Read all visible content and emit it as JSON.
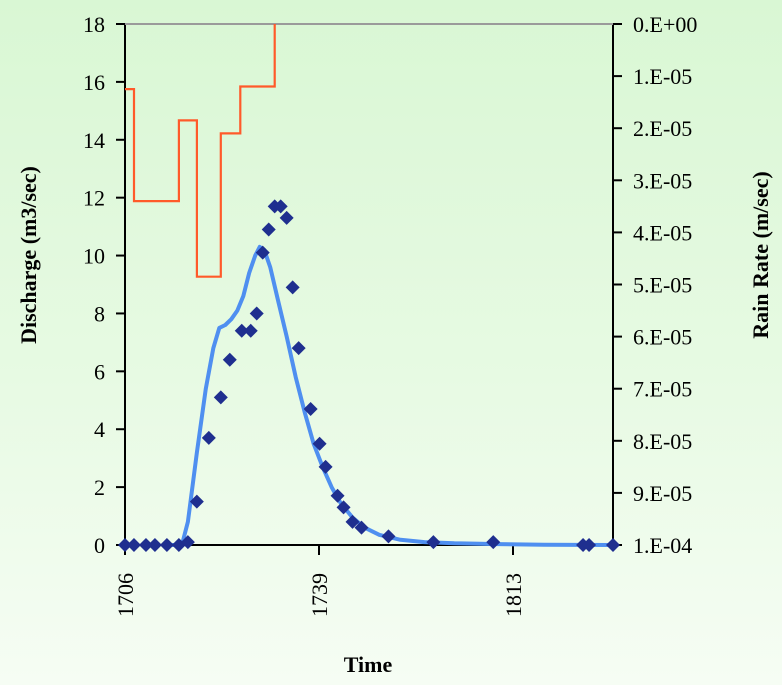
{
  "chart_data": {
    "type": "line",
    "title": "",
    "xlabel": "Time",
    "ylabel": "Discharge (m3/sec)",
    "y2label": "Rain Rate (m/sec)",
    "x_tick_labels": [
      "1706",
      "1739",
      "1813"
    ],
    "ylim": [
      0,
      18
    ],
    "y_ticks": [
      0,
      2,
      4,
      6,
      8,
      10,
      12,
      14,
      16,
      18
    ],
    "y2lim_inverted": [
      0.0,
      0.0001
    ],
    "y2_tick_labels": [
      "0.E+00",
      "1.E-05",
      "2.E-05",
      "3.E-05",
      "4.E-05",
      "5.E-05",
      "6.E-05",
      "7.E-05",
      "8.E-05",
      "9.E-05",
      "1.E-04"
    ],
    "grid": false,
    "series": [
      {
        "role": "observed_discharge",
        "style": "markers",
        "color": "#1f2f8f",
        "points": [
          [
            0,
            0
          ],
          [
            0.3,
            0
          ],
          [
            0.7,
            0
          ],
          [
            1.0,
            0
          ],
          [
            1.4,
            0
          ],
          [
            1.8,
            0
          ],
          [
            2.1,
            0.1
          ],
          [
            2.4,
            1.5
          ],
          [
            2.8,
            3.7
          ],
          [
            3.2,
            5.1
          ],
          [
            3.5,
            6.4
          ],
          [
            3.9,
            7.4
          ],
          [
            4.2,
            7.4
          ],
          [
            4.4,
            8.0
          ],
          [
            4.6,
            10.1
          ],
          [
            4.8,
            10.9
          ],
          [
            5.0,
            11.7
          ],
          [
            5.2,
            11.7
          ],
          [
            5.4,
            11.3
          ],
          [
            5.6,
            8.9
          ],
          [
            5.8,
            6.8
          ],
          [
            6.2,
            4.7
          ],
          [
            6.5,
            3.5
          ],
          [
            6.7,
            2.7
          ],
          [
            7.1,
            1.7
          ],
          [
            7.3,
            1.3
          ],
          [
            7.6,
            0.8
          ],
          [
            7.9,
            0.6
          ],
          [
            8.8,
            0.3
          ],
          [
            10.3,
            0.1
          ],
          [
            12.3,
            0.1
          ],
          [
            15.3,
            0
          ],
          [
            15.5,
            0
          ],
          [
            16.3,
            0
          ]
        ]
      },
      {
        "role": "simulated_discharge",
        "style": "line",
        "color": "#4f8ff0",
        "points": [
          [
            1.5,
            0
          ],
          [
            1.9,
            0
          ],
          [
            2.1,
            0.8
          ],
          [
            2.4,
            3.2
          ],
          [
            2.7,
            5.4
          ],
          [
            2.95,
            6.8
          ],
          [
            3.15,
            7.5
          ],
          [
            3.35,
            7.6
          ],
          [
            3.55,
            7.8
          ],
          [
            3.75,
            8.1
          ],
          [
            3.95,
            8.6
          ],
          [
            4.15,
            9.4
          ],
          [
            4.35,
            10.0
          ],
          [
            4.5,
            10.3
          ],
          [
            4.65,
            10.2
          ],
          [
            4.85,
            9.6
          ],
          [
            5.1,
            8.5
          ],
          [
            5.4,
            7.2
          ],
          [
            5.7,
            5.8
          ],
          [
            6.0,
            4.6
          ],
          [
            6.3,
            3.5
          ],
          [
            6.6,
            2.7
          ],
          [
            6.9,
            2.0
          ],
          [
            7.2,
            1.45
          ],
          [
            7.6,
            0.95
          ],
          [
            8.0,
            0.6
          ],
          [
            8.5,
            0.35
          ],
          [
            9.2,
            0.18
          ],
          [
            10.0,
            0.1
          ],
          [
            11.0,
            0.06
          ],
          [
            12.5,
            0.03
          ],
          [
            14.0,
            0.01
          ],
          [
            16.3,
            0
          ]
        ]
      },
      {
        "role": "rain_rate",
        "style": "step",
        "color": "#ff5a2a",
        "points": [
          [
            0,
            1.25e-05
          ],
          [
            0.3,
            1.25e-05
          ],
          [
            0.3,
            3.4e-05
          ],
          [
            1.8,
            3.4e-05
          ],
          [
            1.8,
            1.85e-05
          ],
          [
            2.4,
            1.85e-05
          ],
          [
            2.4,
            4.85e-05
          ],
          [
            3.2,
            4.85e-05
          ],
          [
            3.2,
            2.1e-05
          ],
          [
            3.85,
            2.1e-05
          ],
          [
            3.85,
            1.2e-05
          ],
          [
            5.0,
            1.2e-05
          ],
          [
            5.0,
            0
          ]
        ]
      }
    ]
  }
}
